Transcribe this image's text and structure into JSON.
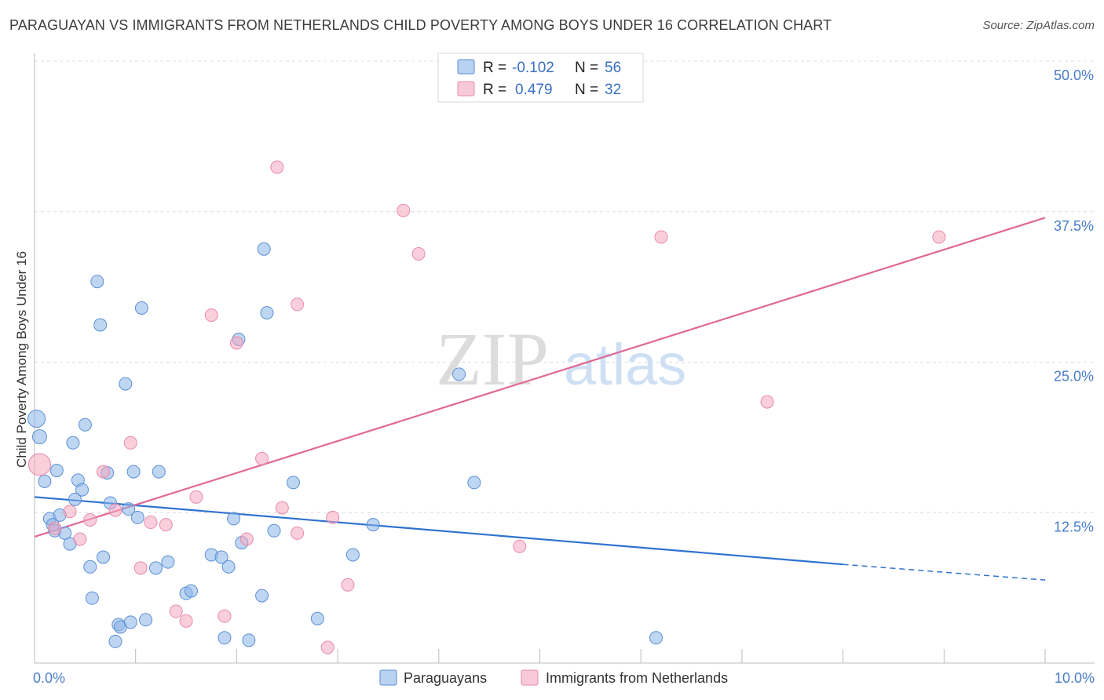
{
  "title": "PARAGUAYAN VS IMMIGRANTS FROM NETHERLANDS CHILD POVERTY AMONG BOYS UNDER 16 CORRELATION CHART",
  "source": "Source: ZipAtlas.com",
  "watermark": {
    "zip": "ZIP",
    "atlas": "atlas"
  },
  "chart_data": {
    "type": "scatter",
    "ylabel": "Child Poverty Among Boys Under 16",
    "xlim": [
      0,
      10
    ],
    "ylim": [
      0,
      50
    ],
    "x_tick_labels": [
      {
        "value": 0,
        "label": "0.0%"
      },
      {
        "value": 10,
        "label": "10.0%"
      }
    ],
    "y_tick_labels": [
      {
        "value": 12.5,
        "label": "12.5%"
      },
      {
        "value": 25,
        "label": "25.0%"
      },
      {
        "value": 37.5,
        "label": "37.5%"
      },
      {
        "value": 50,
        "label": "50.0%"
      }
    ],
    "grid": true,
    "legend_top": [
      {
        "r_label": "R =",
        "r_value": "-0.102",
        "n_label": "N =",
        "n_value": "56",
        "color": "#8ab4e8"
      },
      {
        "r_label": "R =",
        "r_value": "0.479",
        "n_label": "N =",
        "n_value": "32",
        "color": "#f4a7c0"
      }
    ],
    "series": [
      {
        "name": "Paraguayans",
        "color": "#8ab4e8",
        "stroke": "#5b8fd6",
        "trend_color": "#2f72d0",
        "trend": {
          "x0": 0,
          "y0": 13.8,
          "x1": 8.0,
          "y1": 8.2,
          "x_dash_end": 10.0,
          "y_dash_end": 6.9
        },
        "points": [
          [
            0.02,
            20.3,
            11
          ],
          [
            0.05,
            18.8,
            9
          ],
          [
            0.1,
            15.1,
            8
          ],
          [
            0.15,
            12.0,
            8
          ],
          [
            0.18,
            11.5,
            8
          ],
          [
            0.2,
            11.0,
            8
          ],
          [
            0.22,
            16.0,
            8
          ],
          [
            0.25,
            12.3,
            8
          ],
          [
            0.3,
            10.8,
            8
          ],
          [
            0.35,
            9.9,
            8
          ],
          [
            0.38,
            18.3,
            8
          ],
          [
            0.4,
            13.6,
            8
          ],
          [
            0.43,
            15.2,
            8
          ],
          [
            0.47,
            14.4,
            8
          ],
          [
            0.5,
            19.8,
            8
          ],
          [
            0.55,
            8.0,
            8
          ],
          [
            0.57,
            5.4,
            8
          ],
          [
            0.62,
            31.7,
            8
          ],
          [
            0.65,
            28.1,
            8
          ],
          [
            0.68,
            8.8,
            8
          ],
          [
            0.72,
            15.8,
            8
          ],
          [
            0.75,
            13.3,
            8
          ],
          [
            0.8,
            1.8,
            8
          ],
          [
            0.83,
            3.2,
            8
          ],
          [
            0.85,
            3.0,
            8
          ],
          [
            0.9,
            23.2,
            8
          ],
          [
            0.93,
            12.8,
            8
          ],
          [
            0.95,
            3.4,
            8
          ],
          [
            0.98,
            15.9,
            8
          ],
          [
            1.02,
            12.1,
            8
          ],
          [
            1.06,
            29.5,
            8
          ],
          [
            1.1,
            3.6,
            8
          ],
          [
            1.2,
            7.9,
            8
          ],
          [
            1.23,
            15.9,
            8
          ],
          [
            1.32,
            8.4,
            8
          ],
          [
            1.5,
            5.8,
            8
          ],
          [
            1.55,
            6.0,
            8
          ],
          [
            1.75,
            9.0,
            8
          ],
          [
            1.85,
            8.8,
            8
          ],
          [
            1.88,
            2.1,
            8
          ],
          [
            1.92,
            8.0,
            8
          ],
          [
            1.97,
            12.0,
            8
          ],
          [
            2.02,
            26.9,
            8
          ],
          [
            2.05,
            10.0,
            8
          ],
          [
            2.12,
            1.9,
            8
          ],
          [
            2.25,
            5.6,
            8
          ],
          [
            2.27,
            34.4,
            8
          ],
          [
            2.3,
            29.1,
            8
          ],
          [
            2.37,
            11.0,
            8
          ],
          [
            2.56,
            15.0,
            8
          ],
          [
            2.8,
            3.7,
            8
          ],
          [
            3.15,
            9.0,
            8
          ],
          [
            3.35,
            11.5,
            8
          ],
          [
            4.2,
            24.0,
            8
          ],
          [
            4.35,
            15.0,
            8
          ],
          [
            6.15,
            2.1,
            8
          ]
        ]
      },
      {
        "name": "Immigrants from Netherlands",
        "color": "#f4a7c0",
        "stroke": "#e98aab",
        "trend_color": "#e06896",
        "trend": {
          "x0": 0,
          "y0": 10.5,
          "x1": 10.0,
          "y1": 37.0
        },
        "points": [
          [
            0.05,
            16.5,
            14
          ],
          [
            0.2,
            11.2,
            8
          ],
          [
            0.35,
            12.6,
            8
          ],
          [
            0.45,
            10.3,
            8
          ],
          [
            0.55,
            11.9,
            8
          ],
          [
            0.68,
            15.9,
            8
          ],
          [
            0.8,
            12.7,
            8
          ],
          [
            0.95,
            18.3,
            8
          ],
          [
            1.05,
            7.9,
            8
          ],
          [
            1.15,
            11.7,
            8
          ],
          [
            1.3,
            11.5,
            8
          ],
          [
            1.4,
            4.3,
            8
          ],
          [
            1.5,
            3.5,
            8
          ],
          [
            1.6,
            13.8,
            8
          ],
          [
            1.75,
            28.9,
            8
          ],
          [
            1.88,
            3.9,
            8
          ],
          [
            2.0,
            26.6,
            8
          ],
          [
            2.1,
            10.3,
            8
          ],
          [
            2.25,
            17.0,
            8
          ],
          [
            2.4,
            41.2,
            8
          ],
          [
            2.45,
            12.9,
            8
          ],
          [
            2.6,
            29.8,
            8
          ],
          [
            2.6,
            10.8,
            8
          ],
          [
            2.9,
            1.3,
            8
          ],
          [
            2.95,
            12.1,
            8
          ],
          [
            3.1,
            6.5,
            8
          ],
          [
            3.65,
            37.6,
            8
          ],
          [
            3.8,
            34.0,
            8
          ],
          [
            4.8,
            9.7,
            8
          ],
          [
            6.2,
            35.4,
            8
          ],
          [
            7.25,
            21.7,
            8
          ],
          [
            8.95,
            35.4,
            8
          ]
        ]
      }
    ]
  }
}
